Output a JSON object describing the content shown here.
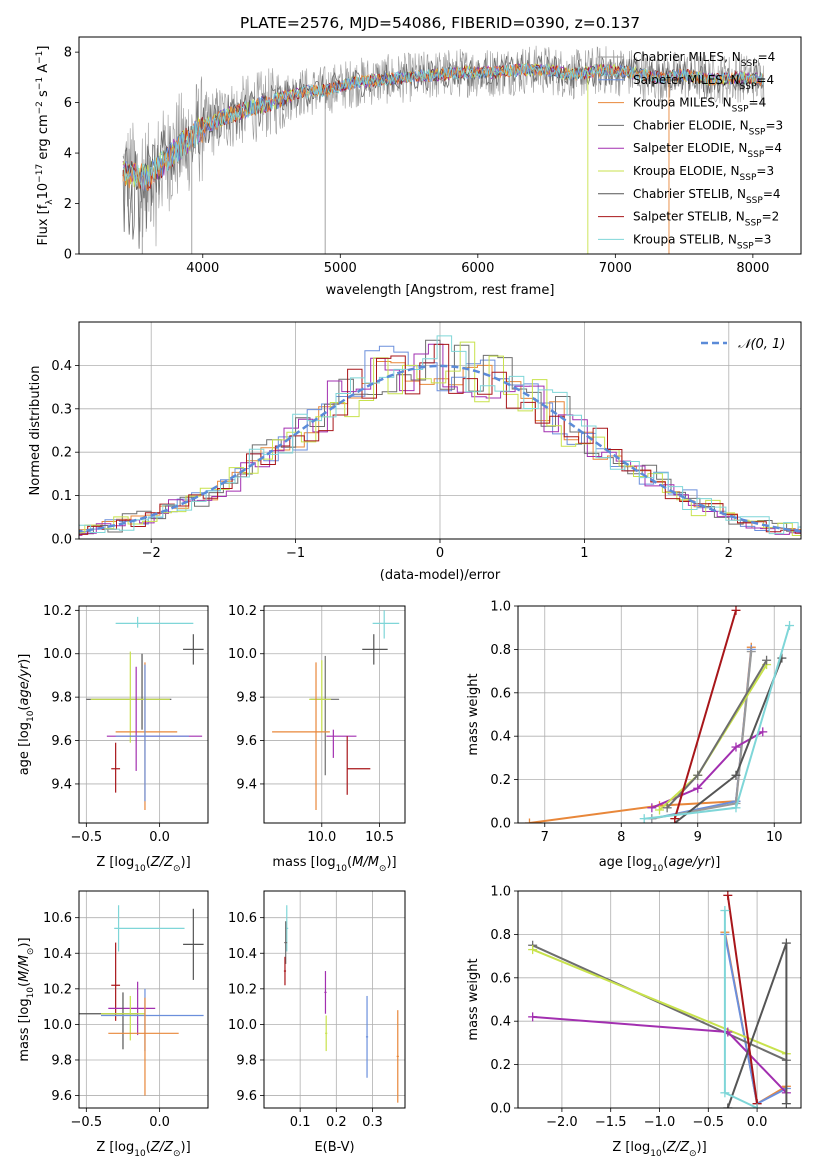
{
  "figure": {
    "title": "PLATE=2576, MJD=54086, FIBERID=0390, z=0.137"
  },
  "colors": {
    "Chabrier MILES": "#9a9a9a",
    "Salpeter MILES": "#6b8fdc",
    "Kroupa MILES": "#e8873a",
    "Chabrier ELODIE": "#6e6e6e",
    "Salpeter ELODIE": "#a22fb0",
    "Kroupa ELODIE": "#c8e24c",
    "Chabrier STELIB": "#555555",
    "Salpeter STELIB": "#a8161a",
    "Kroupa STELIB": "#7fd6d8"
  },
  "chart_data": [
    {
      "id": "spectrum",
      "type": "line",
      "xlabel": "wavelength [Angstrom, rest frame]",
      "ylabel": "Flux [f",
      "xlim": [
        3100,
        8350
      ],
      "ylim": [
        0,
        8.6
      ],
      "xticks": [
        4000,
        5000,
        6000,
        7000,
        8000
      ],
      "yticks": [
        0,
        2,
        4,
        6,
        8
      ],
      "grid": false,
      "legend_position": "right",
      "legend": [
        {
          "model": "Chabrier MILES",
          "nssp": "4"
        },
        {
          "model": "Salpeter MILES",
          "nssp": "4"
        },
        {
          "model": "Kroupa MILES",
          "nssp": "4"
        },
        {
          "model": "Chabrier ELODIE",
          "nssp": "3"
        },
        {
          "model": "Salpeter ELODIE",
          "nssp": "4"
        },
        {
          "model": "Kroupa ELODIE",
          "nssp": "3"
        },
        {
          "model": "Chabrier STELIB",
          "nssp": "4"
        },
        {
          "model": "Salpeter STELIB",
          "nssp": "2"
        },
        {
          "model": "Kroupa STELIB",
          "nssp": "3"
        }
      ],
      "data_trend": {
        "x": [
          3420,
          3600,
          3800,
          3950,
          4100,
          4300,
          4500,
          4700,
          4900,
          5100,
          5300,
          5500,
          5700,
          5900,
          6100,
          6300,
          6500,
          6700,
          6900,
          7100,
          7300,
          7500,
          7700,
          7900,
          8080
        ],
        "y": [
          3.2,
          3.0,
          4.1,
          4.8,
          5.3,
          5.7,
          6.0,
          6.4,
          6.5,
          6.8,
          6.9,
          7.0,
          7.1,
          7.2,
          7.2,
          7.3,
          7.3,
          7.1,
          7.3,
          7.2,
          7.0,
          7.1,
          6.9,
          7.0,
          6.9
        ]
      },
      "outliers": [
        {
          "x": 3560,
          "y": 0
        },
        {
          "x": 3920,
          "y": 0
        },
        {
          "x": 4890,
          "y": 0
        },
        {
          "x": 6800,
          "y": 0
        },
        {
          "x": 7390,
          "y": 0
        }
      ]
    },
    {
      "id": "residuals",
      "type": "histogram",
      "xlabel": "(data-model)/error",
      "ylabel": "Normed distribution",
      "xlim": [
        -2.5,
        2.5
      ],
      "ylim": [
        0,
        0.5
      ],
      "xticks": [
        -2,
        -1,
        0,
        1,
        2
      ],
      "yticks": [
        0.0,
        0.1,
        0.2,
        0.3,
        0.4
      ],
      "grid": true,
      "legend_position": "top-right",
      "legend_entry": "𝒩(0, 1)",
      "gaussian": {
        "mu": 0,
        "sigma": 1
      }
    },
    {
      "id": "age-vs-Z",
      "type": "errorbar",
      "xlabel": "Z [log10(Z/Z⊙)]",
      "ylabel": "age  [log10(age/yr)]",
      "xlim": [
        -0.55,
        0.33
      ],
      "ylim": [
        9.22,
        10.22
      ],
      "xticks": [
        -0.5,
        0.0
      ],
      "yticks": [
        9.4,
        9.6,
        9.8,
        10.0,
        10.2
      ],
      "grid": true,
      "points": [
        {
          "model": "Kroupa STELIB",
          "x": -0.15,
          "y": 10.14,
          "xerr": [
            0.15,
            0.38
          ],
          "yerr": [
            0.02,
            0.03
          ]
        },
        {
          "model": "Chabrier STELIB",
          "x": 0.23,
          "y": 10.02,
          "xerr": [
            0.07,
            0.07
          ],
          "yerr": [
            0.07,
            0.07
          ]
        },
        {
          "model": "Chabrier STELIB",
          "x": -0.12,
          "y": 9.79,
          "xerr": [
            0.38,
            0.2
          ],
          "yerr": [
            0.14,
            0.21
          ]
        },
        {
          "model": "Kroupa ELODIE",
          "x": -0.2,
          "y": 9.79,
          "xerr": [
            0.27,
            0.27
          ],
          "yerr": [
            0.2,
            0.22
          ]
        },
        {
          "model": "Kroupa MILES",
          "x": -0.1,
          "y": 9.64,
          "xerr": [
            0.2,
            0.22
          ],
          "yerr": [
            0.36,
            0.32
          ]
        },
        {
          "model": "Salpeter ELODIE",
          "x": -0.16,
          "y": 9.62,
          "xerr": [
            0.2,
            0.45
          ],
          "yerr": [
            0.16,
            0.32
          ]
        },
        {
          "model": "Salpeter MILES",
          "x": -0.1,
          "y": 9.62,
          "xerr": [
            0.2,
            0.3
          ],
          "yerr": [
            0.3,
            0.33
          ]
        },
        {
          "model": "Salpeter STELIB",
          "x": -0.3,
          "y": 9.47,
          "xerr": [
            0.03,
            0.03
          ],
          "yerr": [
            0.11,
            0.12
          ]
        }
      ]
    },
    {
      "id": "age-vs-mass",
      "type": "errorbar",
      "xlabel": "mass [log10(M/M⊙)]",
      "ylabel": "",
      "xlim": [
        9.5,
        10.72
      ],
      "ylim": [
        9.22,
        10.22
      ],
      "xticks": [
        10.0,
        10.5
      ],
      "yticks": [
        9.4,
        9.6,
        9.8,
        10.0,
        10.2
      ],
      "grid": true,
      "points": [
        {
          "model": "Kroupa STELIB",
          "x": 10.54,
          "y": 10.14,
          "xerr": [
            0.1,
            0.13
          ],
          "yerr": [
            0.07,
            0.06
          ]
        },
        {
          "model": "Chabrier STELIB",
          "x": 10.45,
          "y": 10.02,
          "xerr": [
            0.1,
            0.12
          ],
          "yerr": [
            0.07,
            0.07
          ]
        },
        {
          "model": "Chabrier ELODIE",
          "x": 10.03,
          "y": 9.79,
          "xerr": [
            0.13,
            0.12
          ],
          "yerr": [
            0.35,
            0.2
          ]
        },
        {
          "model": "Kroupa ELODIE",
          "x": 10.0,
          "y": 9.79,
          "xerr": [
            0.11,
            0.08
          ],
          "yerr": [
            0.15,
            0.18
          ]
        },
        {
          "model": "Kroupa MILES",
          "x": 9.95,
          "y": 9.64,
          "xerr": [
            0.38,
            0.12
          ],
          "yerr": [
            0.36,
            0.32
          ]
        },
        {
          "model": "Salpeter ELODIE",
          "x": 10.1,
          "y": 9.62,
          "xerr": [
            0.06,
            0.2
          ],
          "yerr": [
            0.1,
            0.03
          ]
        },
        {
          "model": "Salpeter STELIB",
          "x": 10.22,
          "y": 9.47,
          "xerr": [
            0.0,
            0.2
          ],
          "yerr": [
            0.12,
            0.15
          ]
        }
      ]
    },
    {
      "id": "mass-weight-vs-age",
      "type": "line",
      "xlabel": "age  [log10(age/yr)]",
      "ylabel": "mass weight",
      "xlim": [
        6.65,
        10.35
      ],
      "ylim": [
        0,
        1.0
      ],
      "xticks": [
        7,
        8,
        9,
        10
      ],
      "yticks": [
        0.0,
        0.2,
        0.4,
        0.6,
        0.8,
        1.0
      ],
      "grid": true,
      "series": [
        {
          "model": "Kroupa MILES",
          "x": [
            6.8,
            8.5,
            9.5,
            9.7
          ],
          "y": [
            0.0,
            0.08,
            0.1,
            0.81
          ]
        },
        {
          "model": "Salpeter MILES",
          "x": [
            8.4,
            9.5,
            9.7
          ],
          "y": [
            0.02,
            0.1,
            0.8
          ]
        },
        {
          "model": "Chabrier MILES",
          "x": [
            8.4,
            9.5,
            9.7
          ],
          "y": [
            0.02,
            0.09,
            0.79
          ]
        },
        {
          "model": "Salpeter ELODIE",
          "x": [
            8.4,
            9.0,
            9.5,
            9.85
          ],
          "y": [
            0.07,
            0.16,
            0.35,
            0.42
          ]
        },
        {
          "model": "Kroupa ELODIE",
          "x": [
            8.5,
            9.0,
            9.9
          ],
          "y": [
            0.06,
            0.22,
            0.73
          ]
        },
        {
          "model": "Chabrier ELODIE",
          "x": [
            8.6,
            9.0,
            9.9
          ],
          "y": [
            0.07,
            0.22,
            0.75
          ]
        },
        {
          "model": "Chabrier STELIB",
          "x": [
            8.7,
            9.5,
            10.1
          ],
          "y": [
            0.0,
            0.22,
            0.76
          ]
        },
        {
          "model": "Salpeter STELIB",
          "x": [
            8.7,
            9.5
          ],
          "y": [
            0.02,
            0.98
          ]
        },
        {
          "model": "Kroupa STELIB",
          "x": [
            8.3,
            9.5,
            10.2
          ],
          "y": [
            0.02,
            0.07,
            0.91
          ]
        }
      ]
    },
    {
      "id": "mass-vs-Z",
      "type": "errorbar",
      "xlabel": "Z [log10(Z/Z⊙)]",
      "ylabel": "mass [log10(M/M⊙)]",
      "xlim": [
        -0.55,
        0.33
      ],
      "ylim": [
        9.53,
        10.75
      ],
      "xticks": [
        -0.5,
        0.0
      ],
      "yticks": [
        9.6,
        9.8,
        10.0,
        10.2,
        10.4,
        10.6
      ],
      "grid": true,
      "points": [
        {
          "model": "Kroupa STELIB",
          "x": -0.28,
          "y": 10.54,
          "xerr": [
            0.03,
            0.45
          ],
          "yerr": [
            0.13,
            0.13
          ]
        },
        {
          "model": "Chabrier STELIB",
          "x": 0.23,
          "y": 10.45,
          "xerr": [
            0.07,
            0.07
          ],
          "yerr": [
            0.2,
            0.2
          ]
        },
        {
          "model": "Salpeter STELIB",
          "x": -0.3,
          "y": 10.22,
          "xerr": [
            0.03,
            0.03
          ],
          "yerr": [
            0.2,
            0.24
          ]
        },
        {
          "model": "Salpeter ELODIE",
          "x": -0.15,
          "y": 10.09,
          "xerr": [
            0.2,
            0.12
          ],
          "yerr": [
            0.15,
            0.15
          ]
        },
        {
          "model": "Chabrier STELIB",
          "x": -0.25,
          "y": 10.06,
          "xerr": [
            0.3,
            0.1
          ],
          "yerr": [
            0.2,
            0.12
          ]
        },
        {
          "model": "Kroupa ELODIE",
          "x": -0.2,
          "y": 10.06,
          "xerr": [
            0.2,
            0.1
          ],
          "yerr": [
            0.15,
            0.1
          ]
        },
        {
          "model": "Salpeter MILES",
          "x": -0.1,
          "y": 10.05,
          "xerr": [
            0.3,
            0.4
          ],
          "yerr": [
            0.2,
            0.15
          ]
        },
        {
          "model": "Kroupa MILES",
          "x": -0.1,
          "y": 9.95,
          "xerr": [
            0.25,
            0.23
          ],
          "yerr": [
            0.35,
            0.2
          ]
        }
      ]
    },
    {
      "id": "mass-vs-EBV",
      "type": "errorbar",
      "xlabel": "E(B-V)",
      "ylabel": "",
      "xlim": [
        0.0,
        0.39
      ],
      "ylim": [
        9.53,
        10.75
      ],
      "xticks": [
        0.1,
        0.2,
        0.3
      ],
      "yticks": [
        9.6,
        9.8,
        10.0,
        10.2,
        10.4,
        10.6
      ],
      "grid": true,
      "points": [
        {
          "model": "Kroupa STELIB",
          "x": 0.063,
          "y": 10.54,
          "xerr": [
            0.004,
            0.004
          ],
          "yerr": [
            0.13,
            0.13
          ]
        },
        {
          "model": "Chabrier ELODIE",
          "x": 0.06,
          "y": 10.46,
          "xerr": [
            0.004,
            0.004
          ],
          "yerr": [
            0.12,
            0.12
          ]
        },
        {
          "model": "Salpeter STELIB",
          "x": 0.058,
          "y": 10.3,
          "xerr": [
            0.003,
            0.003
          ],
          "yerr": [
            0.08,
            0.08
          ]
        },
        {
          "model": "Salpeter ELODIE",
          "x": 0.17,
          "y": 10.18,
          "xerr": [
            0.003,
            0.003
          ],
          "yerr": [
            0.12,
            0.12
          ]
        },
        {
          "model": "Kroupa ELODIE",
          "x": 0.172,
          "y": 9.95,
          "xerr": [
            0.003,
            0.003
          ],
          "yerr": [
            0.1,
            0.1
          ]
        },
        {
          "model": "Salpeter MILES",
          "x": 0.285,
          "y": 9.93,
          "xerr": [
            0.003,
            0.003
          ],
          "yerr": [
            0.23,
            0.23
          ]
        },
        {
          "model": "Kroupa MILES",
          "x": 0.37,
          "y": 9.82,
          "xerr": [
            0.003,
            0.003
          ],
          "yerr": [
            0.26,
            0.26
          ]
        }
      ]
    },
    {
      "id": "mass-weight-vs-Z",
      "type": "line",
      "xlabel": "Z [log10(Z/Z⊙)]",
      "ylabel": "mass weight",
      "xlim": [
        -2.45,
        0.45
      ],
      "ylim": [
        0,
        1.0
      ],
      "xticks": [
        -2.0,
        -1.5,
        -1.0,
        -0.5,
        0.0
      ],
      "yticks": [
        0.0,
        0.2,
        0.4,
        0.6,
        0.8,
        1.0
      ],
      "grid": true,
      "series": [
        {
          "model": "Kroupa MILES",
          "x": [
            -0.33,
            0.0,
            0.3
          ],
          "y": [
            0.81,
            0.02,
            0.1
          ]
        },
        {
          "model": "Salpeter MILES",
          "x": [
            -0.33,
            0.0,
            0.3
          ],
          "y": [
            0.8,
            0.02,
            0.09
          ]
        },
        {
          "model": "Chabrier ELODIE",
          "x": [
            -2.3,
            0.3
          ],
          "y": [
            0.75,
            0.22
          ]
        },
        {
          "model": "Kroupa ELODIE",
          "x": [
            -2.3,
            0.3
          ],
          "y": [
            0.73,
            0.25
          ]
        },
        {
          "model": "Salpeter ELODIE",
          "x": [
            -2.3,
            -0.3,
            0.3
          ],
          "y": [
            0.42,
            0.35,
            0.07
          ]
        },
        {
          "model": "Chabrier STELIB",
          "x": [
            -0.3,
            0.3,
            0.3
          ],
          "y": [
            0.0,
            0.76,
            0.02
          ]
        },
        {
          "model": "Salpeter STELIB",
          "x": [
            -0.3,
            0.0
          ],
          "y": [
            0.98,
            0.02
          ]
        },
        {
          "model": "Kroupa STELIB",
          "x": [
            -0.33,
            -0.33,
            0.0
          ],
          "y": [
            0.91,
            0.07,
            0.0
          ]
        }
      ]
    }
  ]
}
